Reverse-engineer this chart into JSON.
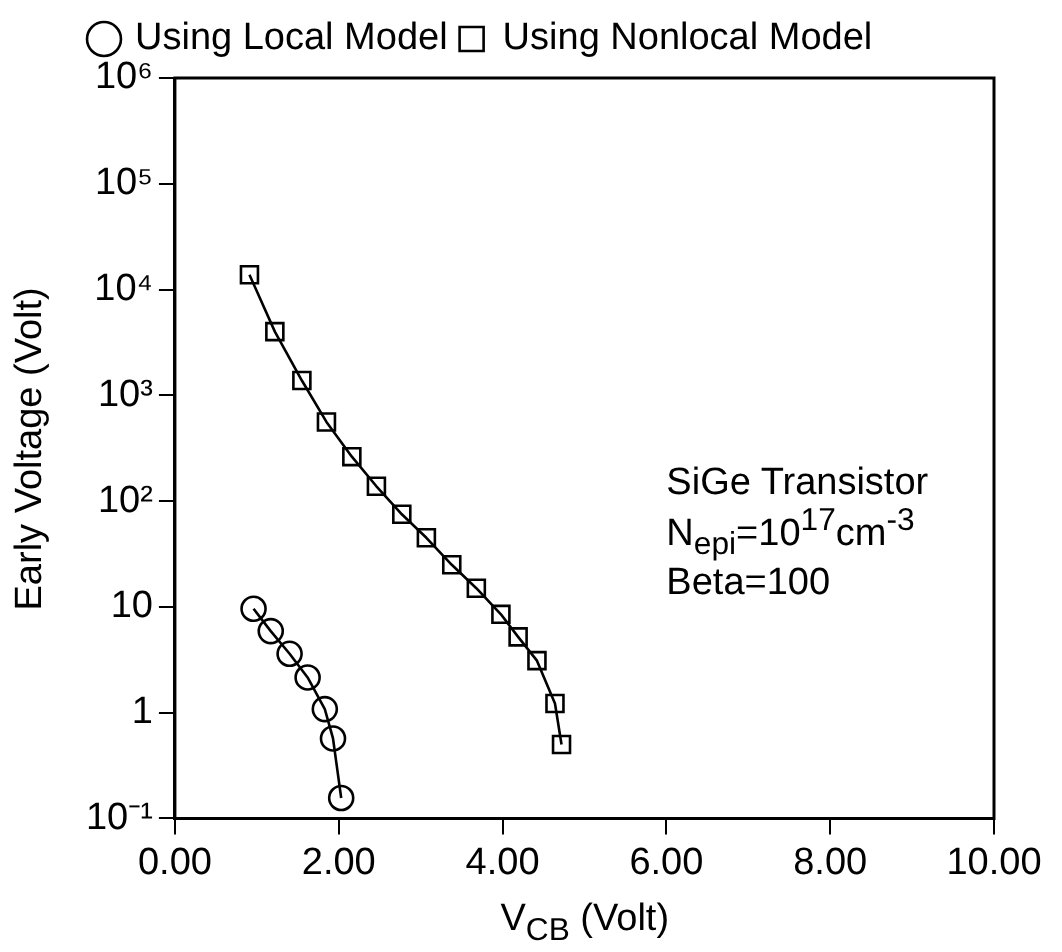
{
  "chart_data": {
    "type": "line",
    "xlabel": "V$_{CB}$ (Volt)",
    "ylabel": "Early Voltage (Volt)",
    "annotations": [
      "SiGe Transistor",
      "N$_{epi}$=10$^{17}$cm$^{-3}$",
      "Beta=100"
    ],
    "log": "y",
    "xlim": [
      0,
      10
    ],
    "ylim": [
      0.1,
      1000000
    ],
    "xticks": [
      {
        "value": 0,
        "label": "0.00"
      },
      {
        "value": 2,
        "label": "2.00"
      },
      {
        "value": 4,
        "label": "4.00"
      },
      {
        "value": 6,
        "label": "6.00"
      },
      {
        "value": 8,
        "label": "8.00"
      },
      {
        "value": 10,
        "label": "10.00"
      }
    ],
    "yticks": [
      {
        "value": 0.1,
        "label": "10⁻¹"
      },
      1,
      10,
      {
        "value": 100,
        "label": "10²"
      },
      {
        "value": 1000,
        "label": "10³"
      },
      {
        "value": 10000,
        "label": "10⁴"
      },
      {
        "value": 100000,
        "label": "10⁵"
      },
      {
        "value": 1000000,
        "label": "10⁶"
      }
    ],
    "grid": false,
    "legend": "top left",
    "line_style": "solid",
    "series": [
      {
        "name": "Using Local Model",
        "color": "#000000",
        "marker": "circle",
        "x": [
          0.96,
          1.17,
          1.4,
          1.62,
          1.83,
          1.93,
          2.03
        ],
        "values": [
          9.6,
          5.9,
          3.6,
          2.15,
          1.08,
          0.57,
          0.156
        ]
      },
      {
        "name": "Using Nonlocal Model",
        "color": "#000000",
        "marker": "square",
        "x": [
          0.91,
          1.22,
          1.55,
          1.85,
          2.16,
          2.46,
          2.77,
          3.07,
          3.38,
          3.68,
          3.98,
          4.19,
          4.42,
          4.64,
          4.72
        ],
        "values": [
          13800,
          4000,
          1380,
          560,
          263,
          138,
          75,
          45,
          25,
          15,
          8.5,
          5.2,
          3.1,
          1.22,
          0.5
        ]
      }
    ]
  }
}
